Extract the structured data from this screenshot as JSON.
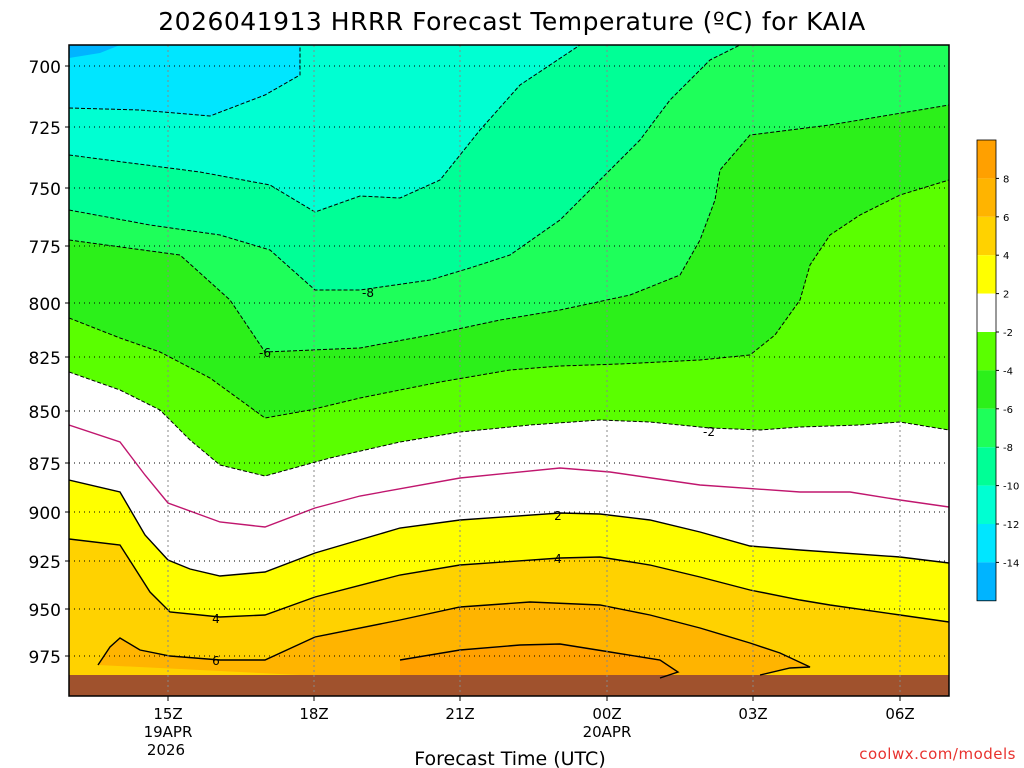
{
  "chart_data": {
    "type": "contour",
    "title": "2026041913 HRRR Forecast Temperature (ºC) for KAIA",
    "xlabel": "Forecast Time (UTC)",
    "ylabel": "",
    "x_ticks": [
      {
        "label": "15Z",
        "sub1": "19APR",
        "sub2": "2026"
      },
      {
        "label": "18Z",
        "sub1": "",
        "sub2": ""
      },
      {
        "label": "21Z",
        "sub1": "",
        "sub2": ""
      },
      {
        "label": "00Z",
        "sub1": "20APR",
        "sub2": ""
      },
      {
        "label": "03Z",
        "sub1": "",
        "sub2": ""
      },
      {
        "label": "06Z",
        "sub1": "",
        "sub2": ""
      }
    ],
    "y_ticks": [
      "700",
      "725",
      "750",
      "775",
      "800",
      "825",
      "850",
      "875",
      "900",
      "925",
      "950",
      "975"
    ],
    "contour_labels": [
      {
        "text": "-8"
      },
      {
        "text": "-6"
      },
      {
        "text": "-2"
      },
      {
        "text": "2"
      },
      {
        "text": "4"
      },
      {
        "text": "4"
      },
      {
        "text": "6"
      }
    ],
    "colorbar": [
      {
        "label": "8",
        "color": "#ffa000"
      },
      {
        "label": "6",
        "color": "#ffb400"
      },
      {
        "label": "4",
        "color": "#ffd200"
      },
      {
        "label": "2",
        "color": "#ffff00"
      },
      {
        "label": "-2",
        "color": "#ffffff"
      },
      {
        "label": "-4",
        "color": "#5aff00"
      },
      {
        "label": "-6",
        "color": "#2cf01a"
      },
      {
        "label": "-8",
        "color": "#1eff5a"
      },
      {
        "label": "-10",
        "color": "#00ff96"
      },
      {
        "label": "-12",
        "color": "#00ffd2"
      },
      {
        "label": "-14",
        "color": "#00e6ff"
      },
      {
        "label": "",
        "color": "#00b4ff"
      }
    ],
    "colors": {
      "ground": "#a0522d",
      "zero_line": "#c0166e",
      "credit": "#e8322e"
    },
    "credit": "coolwx.com/models"
  }
}
